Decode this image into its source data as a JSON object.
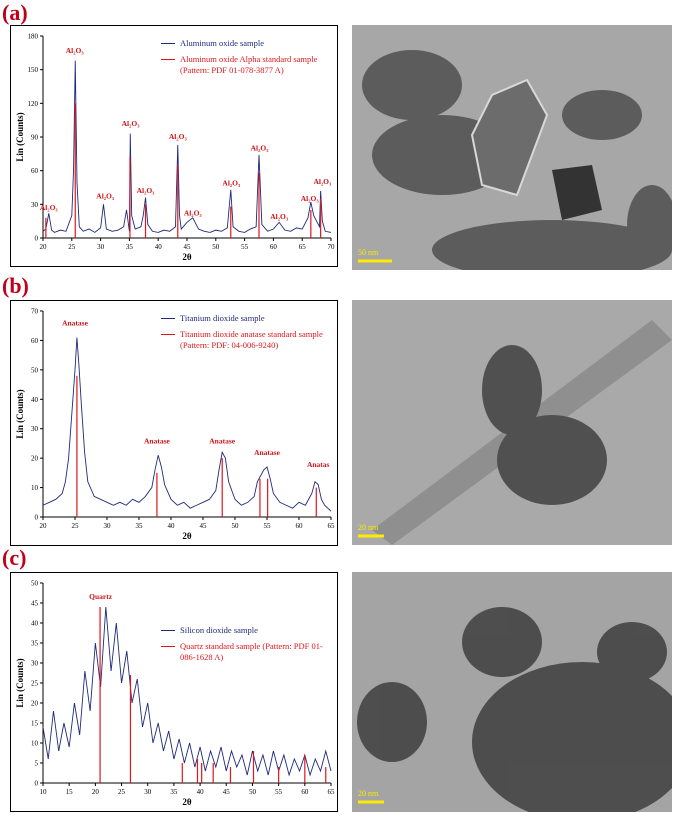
{
  "panels": [
    {
      "label": "(a)",
      "scale_bar": "50 nm"
    },
    {
      "label": "(b)",
      "scale_bar": "20 nm"
    },
    {
      "label": "(c)",
      "scale_bar": "20 nm"
    }
  ],
  "chart_data": [
    {
      "type": "line",
      "y_label": "Lin (Counts)",
      "x_label": "2θ",
      "legend": "upper right",
      "xlim": [
        20,
        70
      ],
      "xticks": [
        20,
        25,
        30,
        35,
        40,
        45,
        50,
        55,
        60,
        65,
        70
      ],
      "ylim": [
        0,
        180
      ],
      "yticks": [
        0,
        30,
        60,
        90,
        120,
        150,
        180
      ],
      "series": [
        {
          "name": "Aluminum oxide sample",
          "color": "#1f2a7a",
          "style": "line",
          "x": [
            20,
            20.5,
            21,
            21.5,
            22,
            23,
            24,
            25,
            25.3,
            25.6,
            25.9,
            26.3,
            27,
            28,
            29,
            30,
            30.5,
            31,
            32,
            33,
            34,
            34.5,
            35,
            35.15,
            35.4,
            36,
            37,
            37.4,
            37.8,
            38.2,
            39,
            40,
            41,
            42,
            43,
            43.4,
            43.7,
            44,
            45,
            46,
            47,
            48,
            49,
            50,
            51,
            52,
            52.6,
            53,
            54,
            55,
            56,
            57,
            57.5,
            58,
            59,
            60,
            61,
            62,
            63,
            64,
            65,
            66,
            66.5,
            67,
            68,
            68.2,
            68.5,
            69,
            70
          ],
          "values": [
            6,
            8,
            22,
            7,
            5,
            7,
            6,
            20,
            60,
            158,
            50,
            10,
            6,
            8,
            5,
            9,
            30,
            8,
            6,
            7,
            10,
            25,
            6,
            93,
            20,
            8,
            10,
            20,
            36,
            12,
            6,
            5,
            7,
            6,
            10,
            83,
            20,
            8,
            14,
            18,
            8,
            6,
            5,
            7,
            6,
            9,
            43,
            10,
            6,
            5,
            8,
            10,
            74,
            12,
            6,
            8,
            14,
            7,
            6,
            9,
            8,
            18,
            32,
            20,
            10,
            42,
            15,
            6,
            5
          ]
        },
        {
          "name": "Aluminum oxide Alpha standard sample (Pattern: PDF 01-078-3877 A)",
          "color": "#e0161c",
          "style": "stem",
          "x": [
            20.5,
            25.6,
            35.1,
            37.8,
            43.4,
            52.6,
            57.5,
            66.5,
            68.2
          ],
          "values": [
            18,
            120,
            72,
            30,
            65,
            28,
            58,
            25,
            35
          ]
        }
      ],
      "annotations": [
        {
          "text": "Al₂O₃",
          "x": 21,
          "y": 25
        },
        {
          "text": "Al₂O₃",
          "x": 25.5,
          "y": 165
        },
        {
          "text": "Al₂O₃",
          "x": 30.8,
          "y": 35
        },
        {
          "text": "Al₂O₃",
          "x": 35.2,
          "y": 100
        },
        {
          "text": "Al₂O₃",
          "x": 37.8,
          "y": 40
        },
        {
          "text": "Al₂O₃",
          "x": 43.4,
          "y": 88
        },
        {
          "text": "Al₂O₃",
          "x": 46,
          "y": 20
        },
        {
          "text": "Al₂O₃",
          "x": 52.7,
          "y": 47
        },
        {
          "text": "Al₂O₃",
          "x": 57.6,
          "y": 78
        },
        {
          "text": "Al₂O₃",
          "x": 61,
          "y": 17
        },
        {
          "text": "Al₂O₃",
          "x": 66.3,
          "y": 33
        },
        {
          "text": "Al₂O₃",
          "x": 68.5,
          "y": 48
        }
      ]
    },
    {
      "type": "line",
      "y_label": "Lin (Counts)",
      "x_label": "2θ",
      "legend": "upper right",
      "xlim": [
        20,
        65
      ],
      "xticks": [
        20,
        25,
        30,
        35,
        40,
        45,
        50,
        55,
        60,
        65
      ],
      "ylim": [
        0,
        70
      ],
      "yticks": [
        0,
        10,
        20,
        30,
        40,
        50,
        60,
        70
      ],
      "series": [
        {
          "name": "Titanium  dioxide sample",
          "color": "#1f2a7a",
          "style": "line",
          "x": [
            20,
            21,
            22,
            23,
            23.5,
            24,
            24.5,
            25,
            25.3,
            25.6,
            26,
            26.5,
            27,
            28,
            29,
            30,
            31,
            32,
            33,
            34,
            35,
            36,
            37,
            37.5,
            38,
            38.5,
            39,
            40,
            41,
            42,
            43,
            44,
            45,
            46,
            47,
            47.5,
            48,
            48.5,
            49,
            50,
            51,
            52,
            53,
            53.5,
            54,
            54.5,
            55,
            55.5,
            56,
            57,
            58,
            59,
            60,
            61,
            62,
            62.5,
            63,
            63.5,
            64,
            65
          ],
          "values": [
            4,
            5,
            6,
            8,
            12,
            20,
            35,
            50,
            61,
            52,
            38,
            22,
            12,
            7,
            6,
            5,
            4,
            5,
            4,
            6,
            5,
            7,
            10,
            16,
            21,
            17,
            11,
            6,
            4,
            5,
            3,
            4,
            5,
            6,
            9,
            16,
            22,
            20,
            12,
            6,
            4,
            5,
            7,
            12,
            14,
            16,
            17,
            13,
            8,
            5,
            4,
            3,
            5,
            4,
            8,
            12,
            11,
            6,
            4,
            2
          ]
        },
        {
          "name": "Titanium  dioxide  anatase  standard sample  (Pattern: PDF: 04-006-9240)",
          "color": "#e0161c",
          "style": "stem",
          "x": [
            25.3,
            37.8,
            48,
            53.9,
            55.1,
            62.7
          ],
          "values": [
            48,
            15,
            20,
            13,
            13,
            10
          ]
        }
      ],
      "annotations": [
        {
          "text": "Anatase",
          "x": 25,
          "y": 65
        },
        {
          "text": "Anatase",
          "x": 37.8,
          "y": 25
        },
        {
          "text": "Anatase",
          "x": 48,
          "y": 25
        },
        {
          "text": "Anatase",
          "x": 55,
          "y": 21
        },
        {
          "text": "Anatas",
          "x": 63,
          "y": 17
        }
      ]
    },
    {
      "type": "line",
      "y_label": "Lin (Counts)",
      "x_label": "2θ",
      "legend": "center right",
      "xlim": [
        10,
        65
      ],
      "xticks": [
        10,
        15,
        20,
        25,
        30,
        35,
        40,
        45,
        50,
        55,
        60,
        65
      ],
      "ylim": [
        0,
        50
      ],
      "yticks": [
        0,
        5,
        10,
        15,
        20,
        25,
        30,
        35,
        40,
        45,
        50
      ],
      "series": [
        {
          "name": "Silicon dioxide sample",
          "color": "#1f2a7a",
          "style": "line",
          "x": [
            10,
            11,
            12,
            13,
            14,
            15,
            16,
            17,
            18,
            19,
            20,
            21,
            22,
            23,
            24,
            25,
            26,
            27,
            28,
            29,
            30,
            31,
            32,
            33,
            34,
            35,
            36,
            37,
            38,
            39,
            40,
            41,
            42,
            43,
            44,
            45,
            46,
            47,
            48,
            49,
            50,
            51,
            52,
            53,
            54,
            55,
            56,
            57,
            58,
            59,
            60,
            61,
            62,
            63,
            64,
            65
          ],
          "values": [
            14,
            6,
            18,
            8,
            15,
            9,
            20,
            12,
            28,
            18,
            35,
            24,
            44,
            28,
            40,
            25,
            33,
            20,
            26,
            14,
            20,
            10,
            15,
            8,
            13,
            6,
            11,
            5,
            10,
            4,
            9,
            3,
            8,
            4,
            9,
            3,
            8,
            4,
            7,
            2,
            8,
            3,
            7,
            2,
            8,
            3,
            7,
            2,
            6,
            3,
            7,
            2,
            6,
            3,
            8,
            3
          ]
        },
        {
          "name": "Quartz standard sample (Pattern: PDF 01-086-1628 A)",
          "color": "#e0161c",
          "style": "stem",
          "x": [
            20.9,
            26.7,
            36.6,
            39.5,
            40.3,
            42.5,
            45.8,
            50.2,
            55,
            60,
            64
          ],
          "values": [
            44,
            27,
            5,
            6,
            5,
            5,
            4,
            8,
            4,
            7,
            4
          ]
        }
      ],
      "annotations": [
        {
          "text": "Quartz",
          "x": 21,
          "y": 46
        }
      ]
    }
  ]
}
